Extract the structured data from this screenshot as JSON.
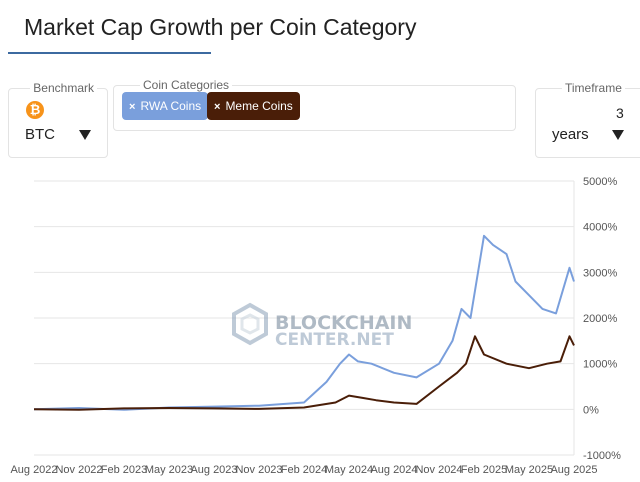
{
  "page": {
    "title": "Market Cap Growth per Coin Category"
  },
  "benchmark": {
    "label": "Benchmark",
    "value": "BTC",
    "icon": "bitcoin-icon",
    "icon_glyph": "₿",
    "icon_color": "#f7931a"
  },
  "categories": {
    "label": "Coin Categories",
    "chips": [
      {
        "label": "RWA Coins",
        "remove_glyph": "×",
        "color": "#7a9fdc"
      },
      {
        "label": "Meme Coins",
        "remove_glyph": "×",
        "color": "#4a1e08"
      }
    ]
  },
  "timeframe": {
    "label": "Timeframe",
    "value": "3",
    "unit": "years"
  },
  "watermark": {
    "line1": "BLOCKCHAIN",
    "line2": "CENTER.NET"
  },
  "chart_data": {
    "type": "line",
    "title": "",
    "xlabel": "",
    "ylabel": "",
    "x_ticks": [
      "Aug 2022",
      "Nov 2022",
      "Feb 2023",
      "May 2023",
      "Aug 2023",
      "Nov 2023",
      "Feb 2024",
      "May 2024",
      "Aug 2024",
      "Nov 2024",
      "Feb 2025",
      "May 2025",
      "Aug 2025"
    ],
    "y_ticks": [
      "5000%",
      "4000%",
      "3000%",
      "2000%",
      "1000%",
      "0%",
      "-1000%"
    ],
    "ylim": [
      -1000,
      5000
    ],
    "y_tick_values": [
      5000,
      4000,
      3000,
      2000,
      1000,
      0,
      -1000
    ],
    "grid": true,
    "y_axis_position": "right",
    "series": [
      {
        "name": "RWA Coins",
        "color": "#7a9fdc",
        "points": [
          [
            0,
            0
          ],
          [
            1,
            30
          ],
          [
            2,
            -10
          ],
          [
            3,
            40
          ],
          [
            4,
            60
          ],
          [
            5,
            80
          ],
          [
            6,
            150
          ],
          [
            6.5,
            600
          ],
          [
            6.8,
            1000
          ],
          [
            7,
            1200
          ],
          [
            7.2,
            1050
          ],
          [
            7.5,
            1000
          ],
          [
            8,
            800
          ],
          [
            8.5,
            700
          ],
          [
            9,
            1000
          ],
          [
            9.3,
            1500
          ],
          [
            9.5,
            2200
          ],
          [
            9.7,
            2000
          ],
          [
            10,
            3800
          ],
          [
            10.2,
            3600
          ],
          [
            10.5,
            3400
          ],
          [
            10.7,
            2800
          ],
          [
            11,
            2500
          ],
          [
            11.3,
            2200
          ],
          [
            11.6,
            2100
          ],
          [
            11.9,
            3100
          ],
          [
            12,
            2800
          ]
        ]
      },
      {
        "name": "Meme Coins",
        "color": "#4a1e08",
        "points": [
          [
            0,
            0
          ],
          [
            1,
            -10
          ],
          [
            2,
            20
          ],
          [
            3,
            30
          ],
          [
            4,
            20
          ],
          [
            5,
            10
          ],
          [
            6,
            40
          ],
          [
            6.7,
            150
          ],
          [
            7,
            300
          ],
          [
            7.3,
            250
          ],
          [
            7.6,
            200
          ],
          [
            8,
            150
          ],
          [
            8.5,
            120
          ],
          [
            9,
            500
          ],
          [
            9.4,
            800
          ],
          [
            9.6,
            1000
          ],
          [
            9.8,
            1600
          ],
          [
            10,
            1200
          ],
          [
            10.5,
            1000
          ],
          [
            11,
            900
          ],
          [
            11.4,
            1000
          ],
          [
            11.7,
            1050
          ],
          [
            11.9,
            1600
          ],
          [
            12,
            1400
          ]
        ]
      }
    ]
  }
}
